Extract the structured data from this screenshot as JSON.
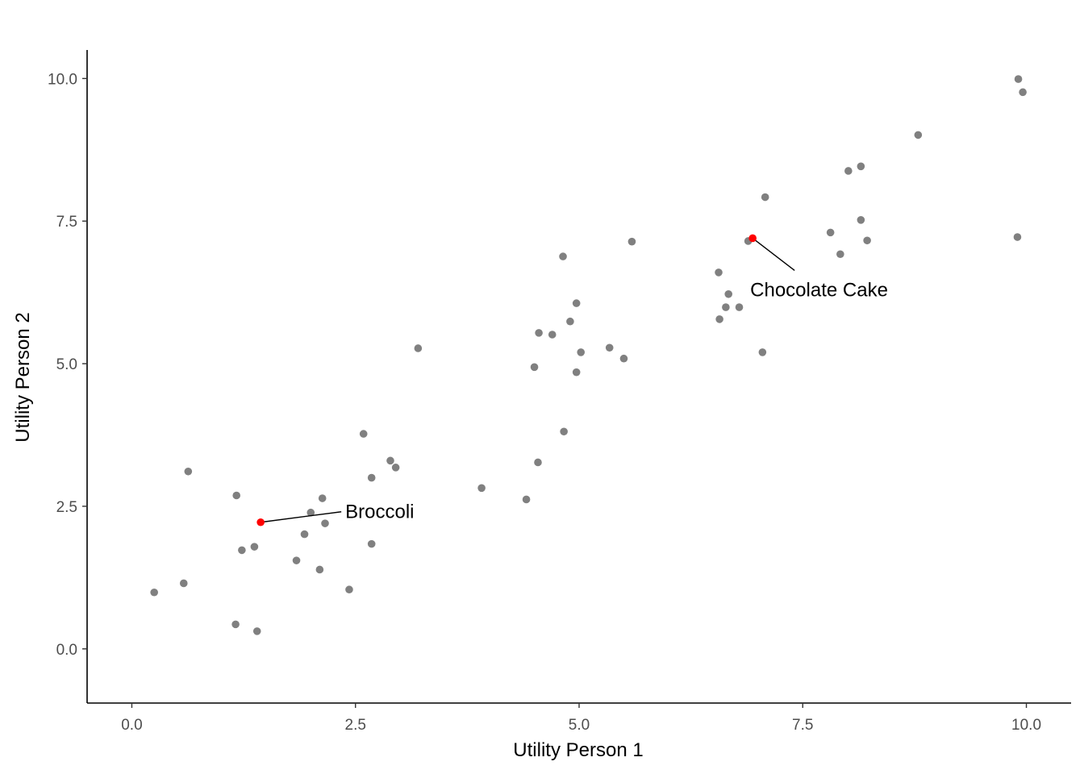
{
  "chart_data": {
    "type": "scatter",
    "xlabel": "Utility Person 1",
    "ylabel": "Utility Person 2",
    "xlim": [
      -0.5,
      10.5
    ],
    "ylim": [
      -0.95,
      10.5
    ],
    "x_ticks": [
      0.0,
      2.5,
      5.0,
      7.5,
      10.0
    ],
    "y_ticks": [
      0.0,
      2.5,
      5.0,
      7.5,
      10.0
    ],
    "x_tick_labels": [
      "0.0",
      "2.5",
      "5.0",
      "7.5",
      "10.0"
    ],
    "y_tick_labels": [
      "0.0",
      "2.5",
      "5.0",
      "7.5",
      "10.0"
    ],
    "grid": false,
    "colors": {
      "points": "#808080",
      "highlight": "#ff0000",
      "axis": "#000000"
    },
    "points": [
      {
        "x": 0.25,
        "y": 0.99
      },
      {
        "x": 0.58,
        "y": 1.15
      },
      {
        "x": 0.63,
        "y": 3.11
      },
      {
        "x": 1.16,
        "y": 0.43
      },
      {
        "x": 1.17,
        "y": 2.69
      },
      {
        "x": 1.23,
        "y": 1.73
      },
      {
        "x": 1.37,
        "y": 1.79
      },
      {
        "x": 1.4,
        "y": 0.31
      },
      {
        "x": 1.84,
        "y": 1.55
      },
      {
        "x": 1.93,
        "y": 2.01
      },
      {
        "x": 2.0,
        "y": 2.39
      },
      {
        "x": 2.1,
        "y": 1.39
      },
      {
        "x": 2.13,
        "y": 2.64
      },
      {
        "x": 2.16,
        "y": 2.2
      },
      {
        "x": 2.43,
        "y": 1.04
      },
      {
        "x": 2.59,
        "y": 3.77
      },
      {
        "x": 2.68,
        "y": 1.84
      },
      {
        "x": 2.68,
        "y": 3.0
      },
      {
        "x": 2.89,
        "y": 3.3
      },
      {
        "x": 2.95,
        "y": 3.18
      },
      {
        "x": 3.2,
        "y": 5.27
      },
      {
        "x": 3.91,
        "y": 2.82
      },
      {
        "x": 4.41,
        "y": 2.62
      },
      {
        "x": 4.5,
        "y": 4.94
      },
      {
        "x": 4.54,
        "y": 3.27
      },
      {
        "x": 4.55,
        "y": 5.54
      },
      {
        "x": 4.7,
        "y": 5.51
      },
      {
        "x": 4.82,
        "y": 6.88
      },
      {
        "x": 4.83,
        "y": 3.81
      },
      {
        "x": 4.9,
        "y": 5.74
      },
      {
        "x": 4.97,
        "y": 6.06
      },
      {
        "x": 4.97,
        "y": 4.85
      },
      {
        "x": 5.02,
        "y": 5.2
      },
      {
        "x": 5.34,
        "y": 5.28
      },
      {
        "x": 5.5,
        "y": 5.09
      },
      {
        "x": 5.59,
        "y": 7.14
      },
      {
        "x": 6.56,
        "y": 6.6
      },
      {
        "x": 6.57,
        "y": 5.78
      },
      {
        "x": 6.64,
        "y": 5.99
      },
      {
        "x": 6.67,
        "y": 6.22
      },
      {
        "x": 6.79,
        "y": 5.99
      },
      {
        "x": 6.89,
        "y": 7.15
      },
      {
        "x": 7.05,
        "y": 5.2
      },
      {
        "x": 7.08,
        "y": 7.92
      },
      {
        "x": 7.81,
        "y": 7.3
      },
      {
        "x": 7.92,
        "y": 6.92
      },
      {
        "x": 8.01,
        "y": 8.38
      },
      {
        "x": 8.15,
        "y": 8.46
      },
      {
        "x": 8.15,
        "y": 7.52
      },
      {
        "x": 8.22,
        "y": 7.16
      },
      {
        "x": 8.79,
        "y": 9.01
      },
      {
        "x": 9.9,
        "y": 7.22
      },
      {
        "x": 9.91,
        "y": 9.99
      },
      {
        "x": 9.96,
        "y": 9.76
      }
    ],
    "highlighted": [
      {
        "label": "Broccoli",
        "x": 1.44,
        "y": 2.22
      },
      {
        "label": "Chocolate Cake",
        "x": 6.94,
        "y": 7.2
      }
    ]
  }
}
